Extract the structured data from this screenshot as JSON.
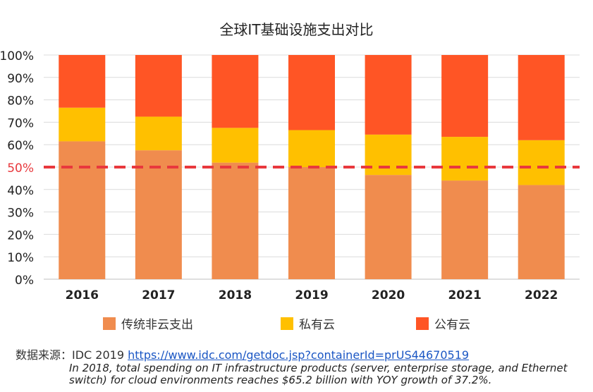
{
  "chart_data": {
    "type": "bar",
    "stacked": true,
    "title": "全球IT基础设施支出对比",
    "categories": [
      "2016",
      "2017",
      "2018",
      "2019",
      "2020",
      "2021",
      "2022"
    ],
    "series": [
      {
        "name": "传统非云支出",
        "color": "#F08C4E",
        "values": [
          61.5,
          57.5,
          52,
          50,
          46.5,
          44,
          42
        ]
      },
      {
        "name": "私有云",
        "color": "#FFC000",
        "values": [
          15,
          15,
          15.5,
          16.5,
          18,
          19.5,
          20
        ]
      },
      {
        "name": "公有云",
        "color": "#FF5525",
        "values": [
          23.5,
          27.5,
          32.5,
          33.5,
          35.5,
          36.5,
          38
        ]
      }
    ],
    "y_ticks": [
      "0%",
      "10%",
      "20%",
      "30%",
      "40%",
      "50%",
      "60%",
      "70%",
      "80%",
      "90%",
      "100%"
    ],
    "ylim": [
      0,
      100
    ],
    "reference_line": {
      "value": 50,
      "color": "#E8383D",
      "label_color": "#E8383D"
    },
    "legend_position": "bottom",
    "grid": true
  },
  "source": {
    "label": "数据来源：IDC 2019",
    "link": "https://www.idc.com/getdoc.jsp?containerId=prUS44670519"
  },
  "note": "In 2018, total spending on IT infrastructure products (server, enterprise storage, and Ethernet switch) for cloud environments reaches $65.2 billion with YOY growth of 37.2%."
}
